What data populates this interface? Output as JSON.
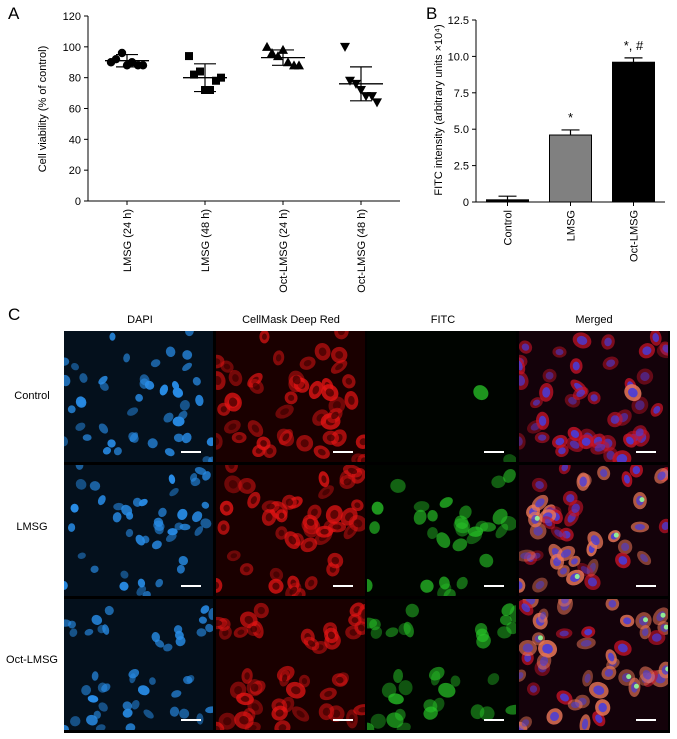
{
  "panels": {
    "a": "A",
    "b": "B",
    "c": "C"
  },
  "chart_data": [
    {
      "type": "scatter",
      "panel": "A",
      "ylabel": "Cell viability (% of control)",
      "ylim": [
        0,
        120
      ],
      "yticks": [
        0,
        20,
        40,
        60,
        80,
        100,
        120
      ],
      "categories": [
        "LMSG (24 h)",
        "LMSG (48 h)",
        "Oct-LMSG (24 h)",
        "Oct-LMSG (48 h)"
      ],
      "markers": [
        "circle",
        "square",
        "triangle-up",
        "triangle-down"
      ],
      "points": [
        [
          90,
          92,
          96,
          88,
          90,
          88,
          88
        ],
        [
          94,
          82,
          84,
          72,
          72,
          78,
          80
        ],
        [
          100,
          96,
          94,
          98,
          90,
          88,
          88
        ],
        [
          100,
          78,
          76,
          72,
          68,
          68,
          64
        ]
      ],
      "means": [
        91,
        80,
        93,
        76
      ],
      "sd": [
        4,
        9,
        5,
        11
      ]
    },
    {
      "type": "bar",
      "panel": "B",
      "ylabel": "FITC intensity (arbitrary units ×10⁴)",
      "ylim": [
        0,
        12.5
      ],
      "yticks": [
        "0",
        "2.5",
        "5.0",
        "7.5",
        "10.0",
        "12.5"
      ],
      "categories": [
        "Control",
        "LMSG",
        "Oct-LMSG"
      ],
      "values": [
        0.15,
        4.6,
        9.6
      ],
      "errors": [
        0.25,
        0.35,
        0.3
      ],
      "colors": [
        "#000000",
        "#808080",
        "#000000"
      ],
      "annotations": [
        "",
        "*",
        "*, #"
      ]
    }
  ],
  "micrographs": {
    "columns": [
      "DAPI",
      "CellMask Deep Red",
      "FITC",
      "Merged"
    ],
    "rows": [
      "Control",
      "LMSG",
      "Oct-LMSG"
    ]
  }
}
